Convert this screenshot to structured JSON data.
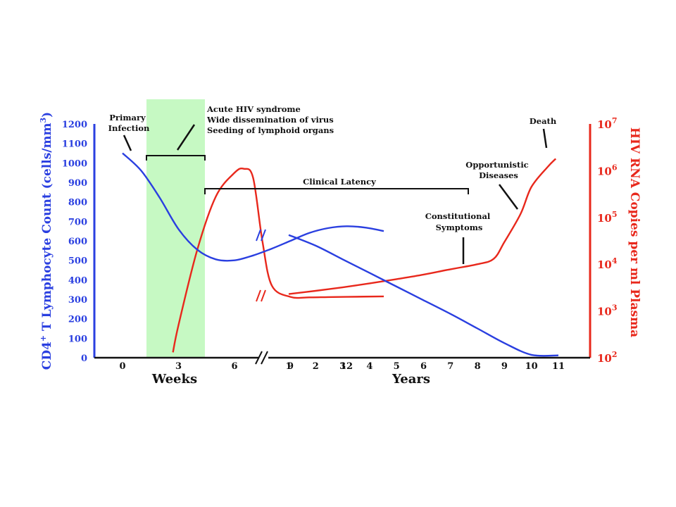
{
  "chart_data": {
    "type": "line",
    "colors": {
      "cd4": "#2a3fe0",
      "rna": "#e8281c",
      "acute_band": "#c6f9c3",
      "brackets": "#111111"
    },
    "y_left": {
      "label": "CD4+ T Lymphocyte Count (cells/mm3)",
      "label_parts": [
        "CD4",
        "+",
        " T Lymphocyte Count (cells/mm",
        "3",
        ")"
      ],
      "ticks": [
        "0",
        "100",
        "200",
        "300",
        "400",
        "500",
        "600",
        "700",
        "800",
        "900",
        "1000",
        "1100",
        "1200"
      ],
      "ylim": [
        0,
        1200
      ]
    },
    "y_right": {
      "label": "HIV RNA Copies per ml Plasma",
      "scale": "log",
      "ticks": [
        {
          "base": "10",
          "exp": "2"
        },
        {
          "base": "10",
          "exp": "3"
        },
        {
          "base": "10",
          "exp": "4"
        },
        {
          "base": "10",
          "exp": "5"
        },
        {
          "base": "10",
          "exp": "6"
        },
        {
          "base": "10",
          "exp": "7"
        }
      ],
      "ylim": [
        100,
        10000000
      ]
    },
    "x_axis": {
      "week_ticks": [
        "0",
        "3",
        "6",
        "9",
        "12"
      ],
      "week_label": "Weeks",
      "year_ticks": [
        "1",
        "2",
        "3",
        "4",
        "5",
        "6",
        "7",
        "8",
        "9",
        "10",
        "11"
      ],
      "year_label": "Years",
      "axis_break": true
    },
    "series": [
      {
        "key": "cd4",
        "weeks": [
          [
            0,
            1050
          ],
          [
            1,
            960
          ],
          [
            2,
            820
          ],
          [
            3,
            660
          ],
          [
            4,
            555
          ],
          [
            5,
            505
          ],
          [
            6,
            500
          ],
          [
            7,
            525
          ],
          [
            8,
            560
          ],
          [
            9,
            600
          ],
          [
            10,
            640
          ],
          [
            11,
            665
          ],
          [
            12,
            675
          ],
          [
            13,
            668
          ],
          [
            14,
            650
          ]
        ],
        "years": [
          [
            1,
            630
          ],
          [
            2,
            575
          ],
          [
            3,
            505
          ],
          [
            4,
            435
          ],
          [
            5,
            365
          ],
          [
            6,
            295
          ],
          [
            7,
            225
          ],
          [
            8,
            150
          ],
          [
            9,
            75
          ],
          [
            10,
            15
          ],
          [
            11,
            12
          ]
        ]
      },
      {
        "key": "rna",
        "weeks": [
          [
            2.7,
            130
          ],
          [
            3,
            500
          ],
          [
            4,
            20000
          ],
          [
            5,
            280000
          ],
          [
            6,
            900000
          ],
          [
            6.5,
            1100000
          ],
          [
            7,
            700000
          ],
          [
            7.5,
            30000
          ],
          [
            8,
            3500
          ],
          [
            9,
            2000
          ],
          [
            10,
            1950
          ],
          [
            11,
            1980
          ],
          [
            12,
            2000
          ],
          [
            14,
            2050
          ]
        ],
        "years": [
          [
            1,
            2300
          ],
          [
            2,
            2700
          ],
          [
            3,
            3200
          ],
          [
            4,
            3900
          ],
          [
            5,
            4800
          ],
          [
            6,
            6000
          ],
          [
            7,
            7800
          ],
          [
            8,
            10000
          ],
          [
            8.6,
            13000
          ],
          [
            9,
            30000
          ],
          [
            9.6,
            120000
          ],
          [
            10,
            450000
          ],
          [
            10.6,
            1200000
          ],
          [
            10.9,
            1800000
          ]
        ]
      }
    ],
    "annotations": {
      "primary_infection": [
        "Primary",
        "Infection"
      ],
      "acute": [
        "Acute HIV syndrome",
        "Wide dissemination of virus",
        "Seeding of lymphoid organs"
      ],
      "clinical_latency": "Clinical Latency",
      "constitutional": [
        "Constitutional",
        "Symptoms"
      ],
      "opportunistic": [
        "Opportunistic",
        "Diseases"
      ],
      "death": "Death"
    }
  }
}
